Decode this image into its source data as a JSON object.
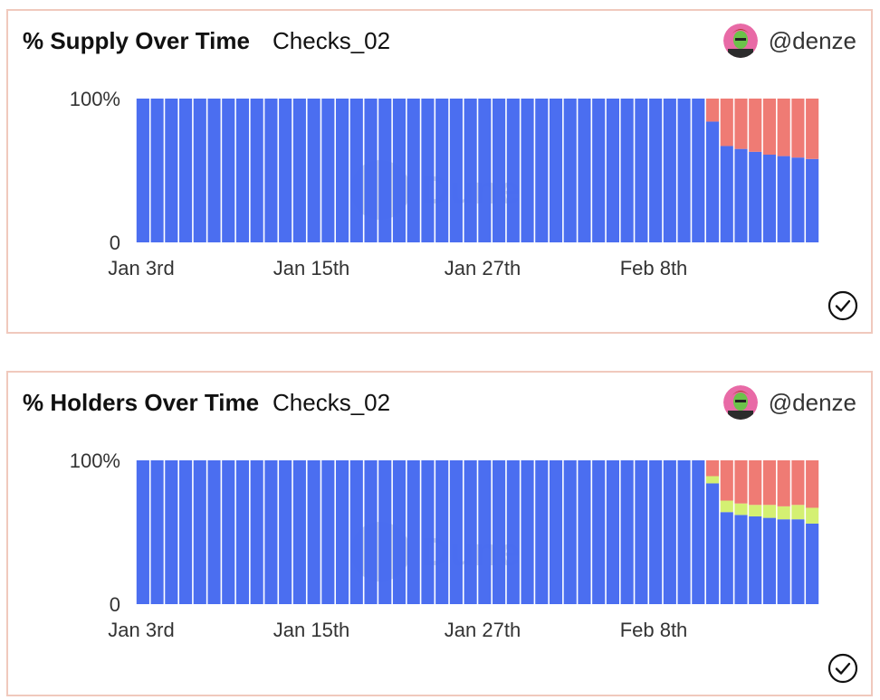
{
  "colors": {
    "blue": "#4569f0",
    "red": "#ee776f",
    "green": "#d3f06d",
    "border": "#f0c9bd"
  },
  "watermark": "Dune",
  "panels": [
    {
      "title": "% Supply Over Time",
      "subtitle": "Checks_02",
      "author": "@denze"
    },
    {
      "title": "% Holders Over Time",
      "subtitle": "Checks_02",
      "author": "@denze"
    }
  ],
  "chart_data": [
    {
      "type": "bar",
      "stacked": true,
      "x_ticks": [
        "Jan 3rd",
        "Jan 15th",
        "Jan 27th",
        "Feb 8th"
      ],
      "y_ticks": [
        "0",
        "100%"
      ],
      "ylim": [
        0,
        100
      ],
      "grid": false,
      "legend": "none",
      "categories": [
        "Jan 3",
        "Jan 4",
        "Jan 5",
        "Jan 6",
        "Jan 7",
        "Jan 8",
        "Jan 9",
        "Jan 10",
        "Jan 11",
        "Jan 12",
        "Jan 13",
        "Jan 14",
        "Jan 15",
        "Jan 16",
        "Jan 17",
        "Jan 18",
        "Jan 19",
        "Jan 20",
        "Jan 21",
        "Jan 22",
        "Jan 23",
        "Jan 24",
        "Jan 25",
        "Jan 26",
        "Jan 27",
        "Jan 28",
        "Jan 29",
        "Jan 30",
        "Jan 31",
        "Feb 1",
        "Feb 2",
        "Feb 3",
        "Feb 4",
        "Feb 5",
        "Feb 6",
        "Feb 7",
        "Feb 8",
        "Feb 9",
        "Feb 10",
        "Feb 11",
        "Feb 12",
        "Feb 13",
        "Feb 14",
        "Feb 15",
        "Feb 16",
        "Feb 17",
        "Feb 18",
        "Feb 19"
      ],
      "series": [
        {
          "color": "#4569f0",
          "values": [
            100,
            100,
            100,
            100,
            100,
            100,
            100,
            100,
            100,
            100,
            100,
            100,
            100,
            100,
            100,
            100,
            100,
            100,
            100,
            100,
            100,
            100,
            100,
            100,
            100,
            100,
            100,
            100,
            100,
            100,
            100,
            100,
            100,
            100,
            100,
            100,
            100,
            100,
            100,
            100,
            84,
            67,
            65,
            63,
            61,
            60,
            59,
            58
          ]
        },
        {
          "color": "#ee776f",
          "values": [
            0,
            0,
            0,
            0,
            0,
            0,
            0,
            0,
            0,
            0,
            0,
            0,
            0,
            0,
            0,
            0,
            0,
            0,
            0,
            0,
            0,
            0,
            0,
            0,
            0,
            0,
            0,
            0,
            0,
            0,
            0,
            0,
            0,
            0,
            0,
            0,
            0,
            0,
            0,
            0,
            16,
            33,
            35,
            37,
            39,
            40,
            41,
            42
          ]
        }
      ]
    },
    {
      "type": "bar",
      "stacked": true,
      "x_ticks": [
        "Jan 3rd",
        "Jan 15th",
        "Jan 27th",
        "Feb 8th"
      ],
      "y_ticks": [
        "0",
        "100%"
      ],
      "ylim": [
        0,
        100
      ],
      "grid": false,
      "legend": "none",
      "categories": [
        "Jan 3",
        "Jan 4",
        "Jan 5",
        "Jan 6",
        "Jan 7",
        "Jan 8",
        "Jan 9",
        "Jan 10",
        "Jan 11",
        "Jan 12",
        "Jan 13",
        "Jan 14",
        "Jan 15",
        "Jan 16",
        "Jan 17",
        "Jan 18",
        "Jan 19",
        "Jan 20",
        "Jan 21",
        "Jan 22",
        "Jan 23",
        "Jan 24",
        "Jan 25",
        "Jan 26",
        "Jan 27",
        "Jan 28",
        "Jan 29",
        "Jan 30",
        "Jan 31",
        "Feb 1",
        "Feb 2",
        "Feb 3",
        "Feb 4",
        "Feb 5",
        "Feb 6",
        "Feb 7",
        "Feb 8",
        "Feb 9",
        "Feb 10",
        "Feb 11",
        "Feb 12",
        "Feb 13",
        "Feb 14",
        "Feb 15",
        "Feb 16",
        "Feb 17",
        "Feb 18",
        "Feb 19"
      ],
      "series": [
        {
          "color": "#4569f0",
          "values": [
            100,
            100,
            100,
            100,
            100,
            100,
            100,
            100,
            100,
            100,
            100,
            100,
            100,
            100,
            100,
            100,
            100,
            100,
            100,
            100,
            100,
            100,
            100,
            100,
            100,
            100,
            100,
            100,
            100,
            100,
            100,
            100,
            100,
            100,
            100,
            100,
            100,
            100,
            100,
            100,
            84,
            64,
            62,
            61,
            60,
            59,
            59,
            56
          ]
        },
        {
          "color": "#d3f06d",
          "values": [
            0,
            0,
            0,
            0,
            0,
            0,
            0,
            0,
            0,
            0,
            0,
            0,
            0,
            0,
            0,
            0,
            0,
            0,
            0,
            0,
            0,
            0,
            0,
            0,
            0,
            0,
            0,
            0,
            0,
            0,
            0,
            0,
            0,
            0,
            0,
            0,
            0,
            0,
            0,
            0,
            5,
            8,
            8,
            8,
            9,
            9,
            10,
            11
          ]
        },
        {
          "color": "#ee776f",
          "values": [
            0,
            0,
            0,
            0,
            0,
            0,
            0,
            0,
            0,
            0,
            0,
            0,
            0,
            0,
            0,
            0,
            0,
            0,
            0,
            0,
            0,
            0,
            0,
            0,
            0,
            0,
            0,
            0,
            0,
            0,
            0,
            0,
            0,
            0,
            0,
            0,
            0,
            0,
            0,
            0,
            11,
            28,
            30,
            31,
            31,
            32,
            31,
            33
          ]
        }
      ]
    }
  ]
}
